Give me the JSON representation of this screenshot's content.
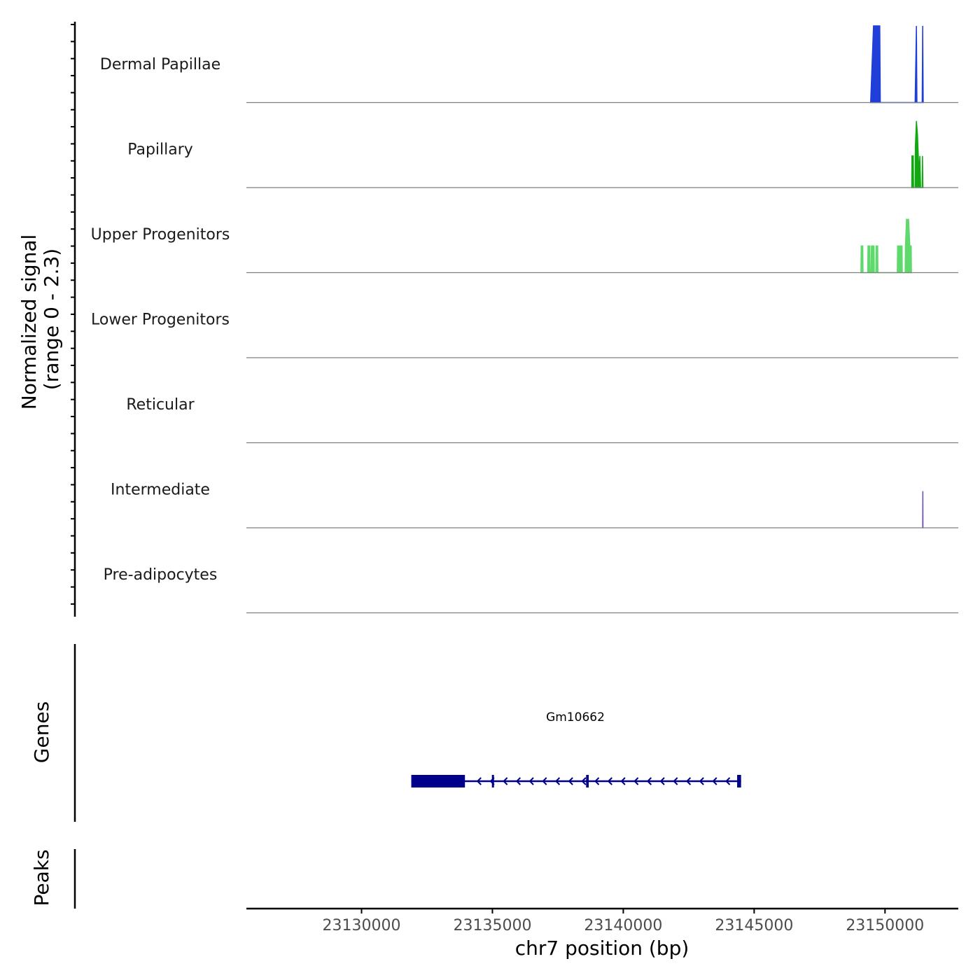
{
  "chart_data": {
    "type": "coverage",
    "title": "",
    "chromosome": "chr7",
    "xlabel": "chr7 position (bp)",
    "ylabel_line1": "Normalized signal",
    "ylabel_line2": "(range 0 - 2.3)",
    "xlim": [
      23125600,
      23152800
    ],
    "ylim": [
      0,
      2.3
    ],
    "x_ticks": [
      23130000,
      23135000,
      23140000,
      23145000,
      23150000
    ],
    "x_tick_labels": [
      "23130000",
      "23135000",
      "23140000",
      "23145000",
      "23150000"
    ],
    "tracks": [
      {
        "name": "Dermal Papillae",
        "color": "#1f3fd8",
        "points": [
          [
            23149450,
            0
          ],
          [
            23149560,
            2.3
          ],
          [
            23149800,
            2.3
          ],
          [
            23149820,
            0
          ],
          [
            23151150,
            0
          ],
          [
            23151200,
            2.3
          ],
          [
            23151220,
            0
          ],
          [
            23151420,
            0
          ],
          [
            23151440,
            2.3
          ],
          [
            23151460,
            0
          ]
        ]
      },
      {
        "name": "Papillary",
        "color": "#11a811",
        "points": [
          [
            23151020,
            0
          ],
          [
            23151030,
            0.95
          ],
          [
            23151080,
            0.95
          ],
          [
            23151090,
            0
          ],
          [
            23151150,
            0
          ],
          [
            23151160,
            1.25
          ],
          [
            23151200,
            2.0
          ],
          [
            23151240,
            1.6
          ],
          [
            23151280,
            0.8
          ],
          [
            23151300,
            0.2
          ],
          [
            23151330,
            0.95
          ],
          [
            23151360,
            0
          ],
          [
            23151420,
            0
          ],
          [
            23151430,
            0.95
          ],
          [
            23151450,
            0
          ]
        ]
      },
      {
        "name": "Upper Progenitors",
        "color": "#5ed96b",
        "points": [
          [
            23149080,
            0
          ],
          [
            23149090,
            0.8
          ],
          [
            23149150,
            0.8
          ],
          [
            23149160,
            0
          ],
          [
            23149340,
            0
          ],
          [
            23149350,
            0.8
          ],
          [
            23149420,
            0.8
          ],
          [
            23149430,
            0
          ],
          [
            23149470,
            0
          ],
          [
            23149480,
            0.8
          ],
          [
            23149580,
            0.8
          ],
          [
            23149590,
            0
          ],
          [
            23149650,
            0
          ],
          [
            23149660,
            0.8
          ],
          [
            23149720,
            0.8
          ],
          [
            23149730,
            0
          ],
          [
            23150470,
            0
          ],
          [
            23150480,
            0.8
          ],
          [
            23150650,
            0.8
          ],
          [
            23150660,
            0
          ],
          [
            23150770,
            0
          ],
          [
            23150780,
            0.8
          ],
          [
            23150820,
            1.6
          ],
          [
            23150900,
            1.6
          ],
          [
            23150950,
            0.8
          ],
          [
            23151000,
            0.8
          ],
          [
            23151010,
            0
          ]
        ]
      },
      {
        "name": "Lower Progenitors",
        "color": "#5ed96b",
        "points": []
      },
      {
        "name": "Reticular",
        "color": "#3ea0c8",
        "points": []
      },
      {
        "name": "Intermediate",
        "color": "#6b4fb0",
        "points": [
          [
            23151440,
            0
          ],
          [
            23151445,
            1.1
          ],
          [
            23151450,
            0
          ]
        ]
      },
      {
        "name": "Pre-adipocytes",
        "color": "#8a3f9e",
        "points": []
      }
    ],
    "genes_label": "Genes",
    "peaks_label": "Peaks",
    "gene": {
      "name": "Gm10662",
      "start": 23131900,
      "end": 23144500,
      "strand": "-",
      "color": "#00008b",
      "thick_exons": [
        [
          23131900,
          23133950
        ]
      ],
      "thin_exons": [
        [
          23134980,
          23135050
        ],
        [
          23138580,
          23138680
        ],
        [
          23144350,
          23144500
        ]
      ]
    }
  }
}
